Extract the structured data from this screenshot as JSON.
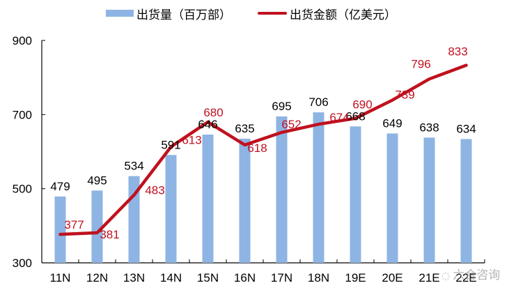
{
  "legend": {
    "bar_label": "出货量（百万部）",
    "line_label": "出货金额（亿美元）"
  },
  "watermark": "六合咨询",
  "colors": {
    "bar": "#8EB4E3",
    "line": "#C0111F",
    "line_label": "#C0111F",
    "bar_label": "#000000",
    "axis": "#000000"
  },
  "chart_data": {
    "type": "bar+line",
    "title": "",
    "xlabel": "",
    "ylabel": "",
    "ylim": [
      300,
      900
    ],
    "yticks": [
      300,
      500,
      700,
      900
    ],
    "grid": false,
    "legend_position": "top",
    "categories": [
      "11N",
      "12N",
      "13N",
      "14N",
      "15N",
      "16N",
      "17N",
      "18N",
      "19E",
      "20E",
      "21E",
      "22E"
    ],
    "series": [
      {
        "name": "出货量（百万部）",
        "type": "bar",
        "values": [
          479,
          495,
          534,
          591,
          646,
          635,
          695,
          706,
          668,
          649,
          638,
          634
        ]
      },
      {
        "name": "出货金额（亿美元）",
        "type": "line",
        "values": [
          377,
          381,
          483,
          613,
          680,
          618,
          652,
          674,
          690,
          739,
          796,
          833
        ]
      }
    ]
  }
}
